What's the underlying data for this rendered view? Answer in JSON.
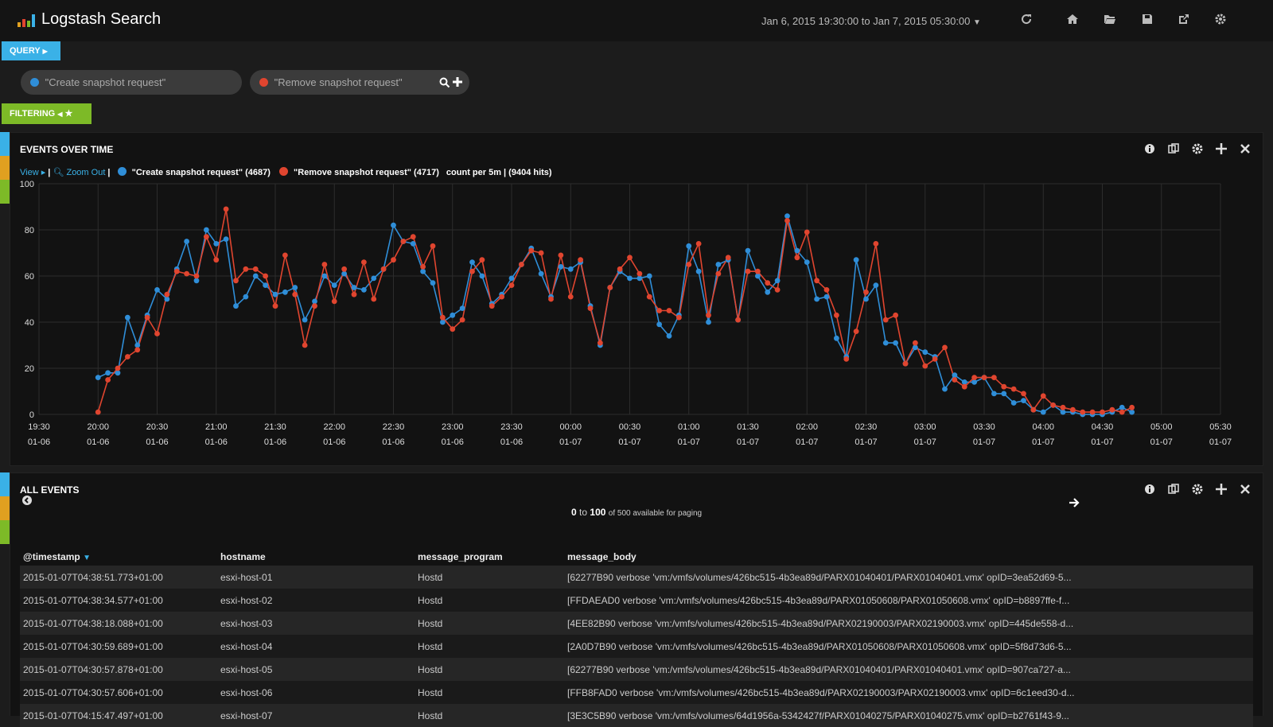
{
  "app": {
    "title": "Logstash Search",
    "time_range": "Jan 6, 2015 19:30:00 to Jan 7, 2015 05:30:00"
  },
  "colors": {
    "blue": "#2f8ed8",
    "red": "#e0452f",
    "query_tab": "#3ab1e7",
    "filter_tab": "#7dba27"
  },
  "query_tab": "QUERY",
  "queries": [
    {
      "color": "#2f8ed8",
      "text": "\"Create snapshot request\""
    },
    {
      "color": "#e0452f",
      "text": "\"Remove snapshot request\""
    }
  ],
  "filter_tab": "FILTERING",
  "events_panel": {
    "title": "EVENTS OVER TIME",
    "view_link": "View",
    "zoom_link": "Zoom Out",
    "legend_create": "\"Create snapshot request\" (4687)",
    "legend_remove": "\"Remove snapshot request\" (4717)",
    "count_info": "count per 5m | (9404 hits)"
  },
  "chart_data": {
    "type": "line",
    "ylim": [
      0,
      100
    ],
    "y_ticks": [
      "0",
      "20",
      "40",
      "60",
      "80",
      "100"
    ],
    "x_ticks": [
      [
        "19:30",
        "01-06"
      ],
      [
        "20:00",
        "01-06"
      ],
      [
        "20:30",
        "01-06"
      ],
      [
        "21:00",
        "01-06"
      ],
      [
        "21:30",
        "01-06"
      ],
      [
        "22:00",
        "01-06"
      ],
      [
        "22:30",
        "01-06"
      ],
      [
        "23:00",
        "01-06"
      ],
      [
        "23:30",
        "01-06"
      ],
      [
        "00:00",
        "01-07"
      ],
      [
        "00:30",
        "01-07"
      ],
      [
        "01:00",
        "01-07"
      ],
      [
        "01:30",
        "01-07"
      ],
      [
        "02:00",
        "01-07"
      ],
      [
        "02:30",
        "01-07"
      ],
      [
        "03:00",
        "01-07"
      ],
      [
        "03:30",
        "01-07"
      ],
      [
        "04:00",
        "01-07"
      ],
      [
        "04:30",
        "01-07"
      ],
      [
        "05:00",
        "01-07"
      ],
      [
        "05:30",
        "01-07"
      ]
    ],
    "x_start": "2015-01-06 20:00",
    "x_interval_minutes": 5,
    "series": [
      {
        "name": "\"Create snapshot request\"",
        "color": "#2f8ed8",
        "values": [
          16,
          18,
          18,
          42,
          30,
          43,
          54,
          50,
          63,
          75,
          58,
          80,
          74,
          76,
          47,
          51,
          60,
          56,
          52,
          53,
          55,
          41,
          49,
          60,
          56,
          61,
          55,
          54,
          59,
          63,
          82,
          75,
          74,
          62,
          57,
          40,
          43,
          46,
          66,
          60,
          48,
          52,
          59,
          65,
          72,
          61,
          51,
          64,
          63,
          66,
          47,
          30,
          55,
          62,
          59,
          59,
          60,
          39,
          34,
          43,
          73,
          62,
          40,
          65,
          67,
          41,
          71,
          60,
          53,
          58,
          86,
          71,
          66,
          50,
          51,
          33,
          25,
          67,
          50,
          56,
          31,
          31,
          22,
          29,
          27,
          25,
          11,
          17,
          14,
          14,
          16,
          9,
          9,
          5,
          6,
          2,
          1,
          4,
          1,
          1,
          0,
          0,
          0,
          1,
          3,
          1
        ]
      },
      {
        "name": "\"Remove snapshot request\"",
        "color": "#e0452f",
        "values": [
          1,
          15,
          20,
          25,
          28,
          42,
          35,
          52,
          62,
          61,
          60,
          77,
          67,
          89,
          58,
          63,
          63,
          60,
          47,
          69,
          52,
          30,
          47,
          65,
          49,
          63,
          52,
          66,
          50,
          63,
          67,
          75,
          77,
          64,
          73,
          42,
          37,
          41,
          62,
          67,
          47,
          51,
          56,
          65,
          71,
          70,
          50,
          69,
          51,
          67,
          46,
          31,
          55,
          63,
          68,
          61,
          51,
          45,
          45,
          42,
          65,
          74,
          43,
          61,
          68,
          41,
          62,
          62,
          57,
          54,
          84,
          68,
          79,
          58,
          54,
          43,
          24,
          36,
          53,
          74,
          41,
          43,
          22,
          31,
          21,
          24,
          29,
          15,
          12,
          16,
          16,
          16,
          12,
          11,
          9,
          2,
          8,
          4,
          3,
          2,
          1,
          1,
          1,
          2,
          1,
          3
        ]
      }
    ]
  },
  "all_events": {
    "title": "ALL EVENTS",
    "paging_from": "0",
    "paging_to": "to",
    "paging_count": "100",
    "paging_note": "of 500 available for paging",
    "columns": [
      "@timestamp",
      "hostname",
      "message_program",
      "message_body"
    ],
    "rows": [
      {
        "timestamp": "2015-01-07T04:38:51.773+01:00",
        "hostname": "esxi-host-01",
        "program": "Hostd",
        "body": "[62277B90 verbose 'vm:/vmfs/volumes/426bc515-4b3ea89d/PARX01040401/PARX01040401.vmx' opID=3ea52d69-5..."
      },
      {
        "timestamp": "2015-01-07T04:38:34.577+01:00",
        "hostname": "esxi-host-02",
        "program": "Hostd",
        "body": "[FFDAEAD0 verbose 'vm:/vmfs/volumes/426bc515-4b3ea89d/PARX01050608/PARX01050608.vmx' opID=b8897ffe-f..."
      },
      {
        "timestamp": "2015-01-07T04:38:18.088+01:00",
        "hostname": "esxi-host-03",
        "program": "Hostd",
        "body": "[4EE82B90 verbose 'vm:/vmfs/volumes/426bc515-4b3ea89d/PARX02190003/PARX02190003.vmx' opID=445de558-d..."
      },
      {
        "timestamp": "2015-01-07T04:30:59.689+01:00",
        "hostname": "esxi-host-04",
        "program": "Hostd",
        "body": "[2A0D7B90 verbose 'vm:/vmfs/volumes/426bc515-4b3ea89d/PARX01050608/PARX01050608.vmx' opID=5f8d73d6-5..."
      },
      {
        "timestamp": "2015-01-07T04:30:57.878+01:00",
        "hostname": "esxi-host-05",
        "program": "Hostd",
        "body": "[62277B90 verbose 'vm:/vmfs/volumes/426bc515-4b3ea89d/PARX01040401/PARX01040401.vmx' opID=907ca727-a..."
      },
      {
        "timestamp": "2015-01-07T04:30:57.606+01:00",
        "hostname": "esxi-host-06",
        "program": "Hostd",
        "body": "[FFB8FAD0 verbose 'vm:/vmfs/volumes/426bc515-4b3ea89d/PARX02190003/PARX02190003.vmx' opID=6c1eed30-d..."
      },
      {
        "timestamp": "2015-01-07T04:15:47.497+01:00",
        "hostname": "esxi-host-07",
        "program": "Hostd",
        "body": "[3E3C5B90 verbose 'vm:/vmfs/volumes/64d1956a-5342427f/PARX01040275/PARX01040275.vmx' opID=b2761f43-9..."
      }
    ]
  }
}
